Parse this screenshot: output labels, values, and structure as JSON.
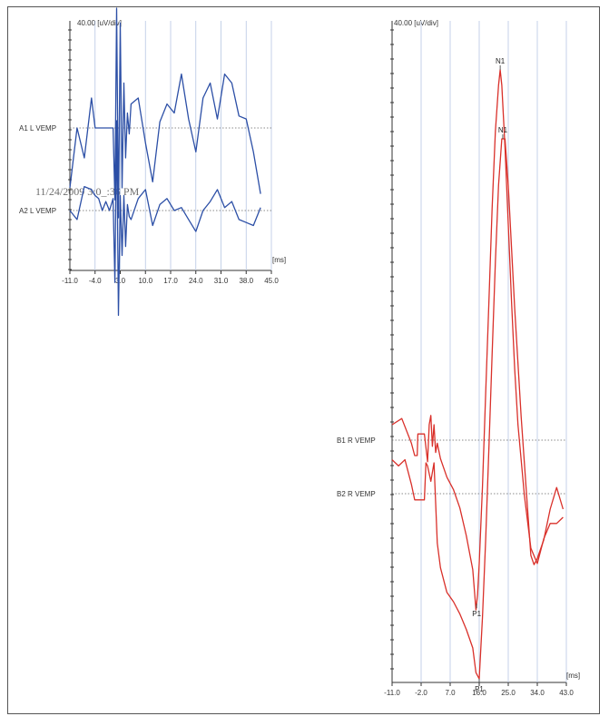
{
  "chart_data": [
    {
      "type": "line",
      "panel": "left",
      "scale_label": "40.00 [uV/div]",
      "x_unit_label": "[ms]",
      "xlim": [
        -11.0,
        45.0
      ],
      "x_ticks": [
        "-11.0",
        "-4.0",
        "3.0",
        "10.0",
        "17.0",
        "24.0",
        "31.0",
        "38.0",
        "45.0"
      ],
      "timestamp": "11/24/2009 3:0_:36 PM",
      "color": "#2c4fa6",
      "series": [
        {
          "name": "A1 L VEMP",
          "x": [
            -11,
            -9,
            -7,
            -5,
            -4,
            -3,
            -2,
            -1,
            0,
            1,
            1.5,
            2,
            2.5,
            3,
            3.5,
            4,
            4.5,
            5,
            5.5,
            6,
            8,
            10,
            12,
            14,
            16,
            18,
            20,
            22,
            24,
            26,
            28,
            30,
            32,
            34,
            36,
            38,
            40,
            42
          ],
          "y": [
            -2,
            0,
            -1,
            1,
            0,
            0,
            0,
            0,
            0,
            0,
            -2.4,
            4,
            -3,
            3.5,
            -2,
            1.5,
            -1,
            0.5,
            -0.2,
            0.8,
            1,
            -0.5,
            -1.8,
            0.2,
            0.8,
            0.5,
            1.8,
            0.3,
            -0.8,
            1,
            1.5,
            0.3,
            1.8,
            1.5,
            0.4,
            0.3,
            -0.8,
            -2.2
          ]
        },
        {
          "name": "A2 L VEMP",
          "x": [
            -11,
            -9,
            -7,
            -5,
            -4,
            -3,
            -2,
            -1,
            0,
            1,
            1.5,
            2,
            2.5,
            3,
            3.5,
            4,
            4.5,
            5,
            5.5,
            6,
            8,
            10,
            12,
            14,
            16,
            18,
            20,
            22,
            24,
            26,
            28,
            30,
            32,
            34,
            36,
            38,
            40,
            42
          ],
          "y": [
            0,
            -0.3,
            0.8,
            0.7,
            0.5,
            0.4,
            0,
            0.3,
            0,
            0.4,
            -2.4,
            3,
            -3.5,
            0.5,
            -1.5,
            0.5,
            -1.2,
            0.2,
            -0.2,
            -0.3,
            0.4,
            0.7,
            -0.5,
            0.2,
            0.4,
            0,
            0.1,
            -0.3,
            -0.7,
            0,
            0.3,
            0.7,
            0.1,
            0.3,
            -0.3,
            -0.4,
            -0.5,
            0.1
          ]
        }
      ]
    },
    {
      "type": "line",
      "panel": "right",
      "scale_label": "40.00 [uV/div]",
      "x_unit_label": "[ms]",
      "xlim": [
        -11.0,
        43.0
      ],
      "x_ticks": [
        "-11.0",
        "-2.0",
        "7.0",
        "16.0",
        "25.0",
        "34.0",
        "43.0"
      ],
      "color": "#d9302a",
      "series": [
        {
          "name": "B1 R VEMP",
          "x": [
            -11,
            -8,
            -5,
            -4,
            -3.2,
            -3,
            -1,
            0,
            0.5,
            1,
            1.5,
            2,
            2.5,
            3,
            4,
            6,
            8,
            10,
            12,
            14,
            15,
            15.5,
            16,
            17,
            18,
            19,
            20,
            21,
            22,
            22.5,
            23,
            24,
            25,
            26,
            27,
            28,
            30,
            32,
            34,
            36,
            38,
            40,
            42
          ],
          "y": [
            0.5,
            0.7,
            -0.1,
            -0.5,
            -0.5,
            0.2,
            0.2,
            -0.7,
            0.5,
            0.8,
            -0.2,
            0.5,
            -0.4,
            -0.1,
            -0.6,
            -1.2,
            -1.6,
            -2.2,
            -3.1,
            -4.2,
            -5.5,
            -5.0,
            -4,
            -1.5,
            1.5,
            4.5,
            7.5,
            10,
            11.5,
            12,
            11.5,
            9.5,
            7.0,
            4.5,
            2.3,
            0.5,
            -1.8,
            -3.5,
            -4.0,
            -3.2,
            -2.7,
            -2.7,
            -2.5
          ]
        },
        {
          "name": "B2 R VEMP",
          "x": [
            -11,
            -9,
            -7,
            -5,
            -4,
            -3,
            -2,
            -1,
            -0.5,
            0,
            1,
            2,
            3,
            4,
            6,
            8,
            10,
            12,
            14,
            15,
            16,
            17,
            18,
            19,
            20,
            21,
            22,
            23,
            24,
            25,
            27,
            29,
            31,
            32,
            33,
            34,
            36,
            38,
            40,
            42
          ],
          "y": [
            1.1,
            0.9,
            1.1,
            0.3,
            -0.2,
            -0.2,
            -0.2,
            -0.2,
            1.0,
            0.9,
            0.4,
            1.0,
            -1.6,
            -2.4,
            -3.2,
            -3.5,
            -3.9,
            -4.4,
            -5.0,
            -5.8,
            -6.0,
            -4,
            -1.5,
            1.5,
            4.5,
            7.5,
            10,
            11.5,
            11.5,
            10.0,
            6.0,
            2.5,
            -0.5,
            -2.0,
            -2.3,
            -2.1,
            -1.5,
            -0.5,
            0.2,
            -0.5
          ]
        }
      ],
      "peak_labels": [
        {
          "label": "N1",
          "series": "B1 R VEMP",
          "x": 22.5
        },
        {
          "label": "N1",
          "series": "B2 R VEMP",
          "x": 23.3
        },
        {
          "label": "P1",
          "series": "B1 R VEMP",
          "x": 15.2
        },
        {
          "label": "P1",
          "series": "B2 R VEMP",
          "x": 16.0
        }
      ]
    }
  ]
}
